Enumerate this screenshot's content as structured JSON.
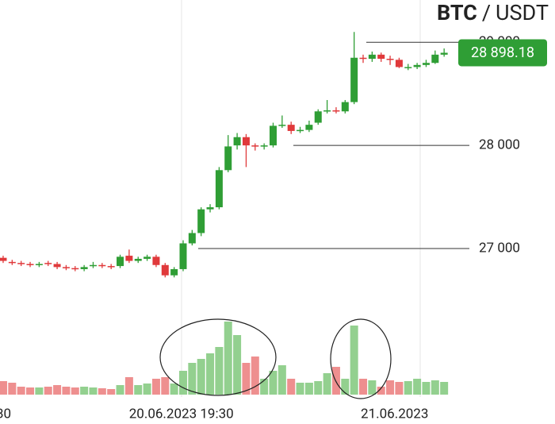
{
  "chart_data": {
    "type": "candlestick",
    "title": {
      "base": "BTC",
      "separator": "/",
      "quote": "USDT"
    },
    "categories": [
      null,
      null,
      null,
      null,
      null,
      null,
      null,
      null,
      null,
      null,
      null,
      null,
      null,
      null,
      null,
      null,
      null,
      null,
      null,
      null,
      null,
      null,
      null,
      null,
      null,
      null,
      null,
      null,
      null,
      null,
      null,
      null,
      null,
      null,
      null,
      null,
      null,
      null,
      null,
      null,
      null,
      null,
      null,
      null,
      null,
      null,
      null,
      null,
      null,
      null
    ],
    "open": [
      26910,
      26870,
      26860,
      26850,
      26840,
      26860,
      26850,
      26820,
      26810,
      26800,
      26830,
      26840,
      26830,
      26830,
      26930,
      26880,
      26900,
      26920,
      26840,
      26740,
      26800,
      27050,
      27150,
      27380,
      27400,
      27760,
      28000,
      28080,
      28000,
      27990,
      28000,
      28190,
      28200,
      28140,
      28150,
      28220,
      28330,
      28340,
      28330,
      28420,
      28850,
      28840,
      28880,
      28840,
      28830,
      28760,
      28760,
      28780,
      28800,
      28880
    ],
    "high": [
      26930,
      26890,
      26880,
      26870,
      26870,
      26880,
      26870,
      26840,
      26830,
      26840,
      26870,
      26860,
      26850,
      26940,
      26990,
      26920,
      26940,
      26940,
      26860,
      26820,
      27080,
      27180,
      27400,
      27430,
      27790,
      28100,
      28120,
      28110,
      28020,
      28020,
      28220,
      28290,
      28230,
      28180,
      28240,
      28350,
      28440,
      28370,
      28440,
      29100,
      28880,
      28910,
      28900,
      28870,
      28850,
      28790,
      28800,
      28830,
      28920,
      28940
    ],
    "low": [
      26860,
      26840,
      26830,
      26820,
      26820,
      26830,
      26800,
      26790,
      26780,
      26780,
      26810,
      26810,
      26800,
      26810,
      26860,
      26860,
      26880,
      26820,
      26720,
      26720,
      26780,
      27030,
      27120,
      27350,
      27380,
      27740,
      27960,
      27790,
      27950,
      27960,
      27980,
      28170,
      28110,
      28120,
      28130,
      28200,
      28310,
      28310,
      28310,
      28400,
      28800,
      28810,
      28810,
      28780,
      28750,
      28730,
      28740,
      28760,
      28790,
      28860
    ],
    "close": [
      26880,
      26860,
      26850,
      26840,
      26850,
      26850,
      26820,
      26810,
      26800,
      26820,
      26840,
      26830,
      26820,
      26920,
      26880,
      26900,
      26920,
      26840,
      26740,
      26800,
      27050,
      27150,
      27380,
      27400,
      27760,
      27990,
      28080,
      28000,
      27990,
      28000,
      28190,
      28200,
      28140,
      28150,
      28200,
      28330,
      28340,
      28330,
      28420,
      28850,
      28840,
      28880,
      28840,
      28830,
      28760,
      28760,
      28780,
      28800,
      28880,
      28898.18
    ],
    "volume": [
      17,
      15,
      10,
      9,
      9,
      10,
      12,
      10,
      9,
      10,
      9,
      8,
      7,
      12,
      22,
      12,
      14,
      20,
      22,
      14,
      30,
      40,
      45,
      52,
      60,
      92,
      75,
      40,
      48,
      20,
      30,
      37,
      20,
      15,
      15,
      17,
      27,
      35,
      20,
      87,
      20,
      18,
      10,
      18,
      16,
      17,
      20,
      16,
      18,
      16
    ],
    "up_color": "#2f9e35",
    "down_color": "#e0393b",
    "volume_up_color": "#93d08f",
    "volume_down_color": "#ee8f8f",
    "ylim": [
      26330,
      29410
    ],
    "yticks": [
      {
        "value": 27000,
        "label": "27 000"
      },
      {
        "value": 28000,
        "label": "28 000"
      },
      {
        "value": 29000,
        "label": "29 000"
      }
    ],
    "volume_ylim": [
      0,
      100
    ],
    "xlim": [
      -0.35,
      61.32
    ],
    "xticks": [
      {
        "value": 0.05,
        "label": "30"
      },
      {
        "value": 19.8,
        "label": "20.06.2023 19:30"
      },
      {
        "value": 43.5,
        "label": "21.06.2023"
      }
    ],
    "last_price": {
      "value": 28898.18,
      "label": "28 898.18",
      "color": "#2f9e35"
    }
  }
}
